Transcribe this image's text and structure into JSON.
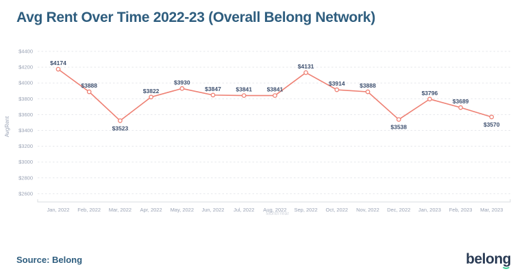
{
  "title": "Avg Rent Over Time 2022-23 (Overall Belong Network)",
  "source_label": "Source: Belong",
  "logo_text": "belong",
  "colors": {
    "title": "#2e5d7e",
    "line": "#ee7f72",
    "marker_fill": "#ffffff",
    "data_label": "#3d4f6e",
    "tick_label": "#99a2b4",
    "axis_title": "#99a2b4",
    "grid": "#e5e7eb",
    "axis_line": "#d9dce1",
    "logo_navy": "#2b3c55",
    "logo_green": "#3ecf97"
  },
  "chart_data": {
    "type": "line",
    "title": "Avg Rent Over Time 2022-23 (Overall Belong Network)",
    "categories": [
      "Jan, 2022",
      "Feb, 2022",
      "Mar, 2022",
      "Apr, 2022",
      "May, 2022",
      "Jun, 2022",
      "Jul, 2022",
      "Aug, 2022",
      "Sep, 2022",
      "Oct, 2022",
      "Nov, 2022",
      "Dec, 2022",
      "Jan, 2023",
      "Feb, 2023",
      "Mar, 2023"
    ],
    "values": [
      4174,
      3888,
      3523,
      3822,
      3930,
      3847,
      3841,
      3841,
      4131,
      3914,
      3888,
      3538,
      3796,
      3689,
      3570
    ],
    "point_labels": [
      "$4174",
      "$3888",
      "$3523",
      "$3822",
      "$3930",
      "$3847",
      "$3841",
      "$3841",
      "$4131",
      "$3914",
      "$3888",
      "$3538",
      "$3796",
      "$3689",
      "$3570"
    ],
    "series_name": "AvgRent",
    "ylabel": "AvgRent",
    "xlabel": "MonthYear",
    "y_ticks": [
      2600,
      2800,
      3000,
      3200,
      3400,
      3600,
      3800,
      4000,
      4200,
      4400
    ],
    "y_tick_prefix": "$",
    "ylim": [
      2600,
      4400
    ],
    "grid": "dashed",
    "legend": "none"
  }
}
